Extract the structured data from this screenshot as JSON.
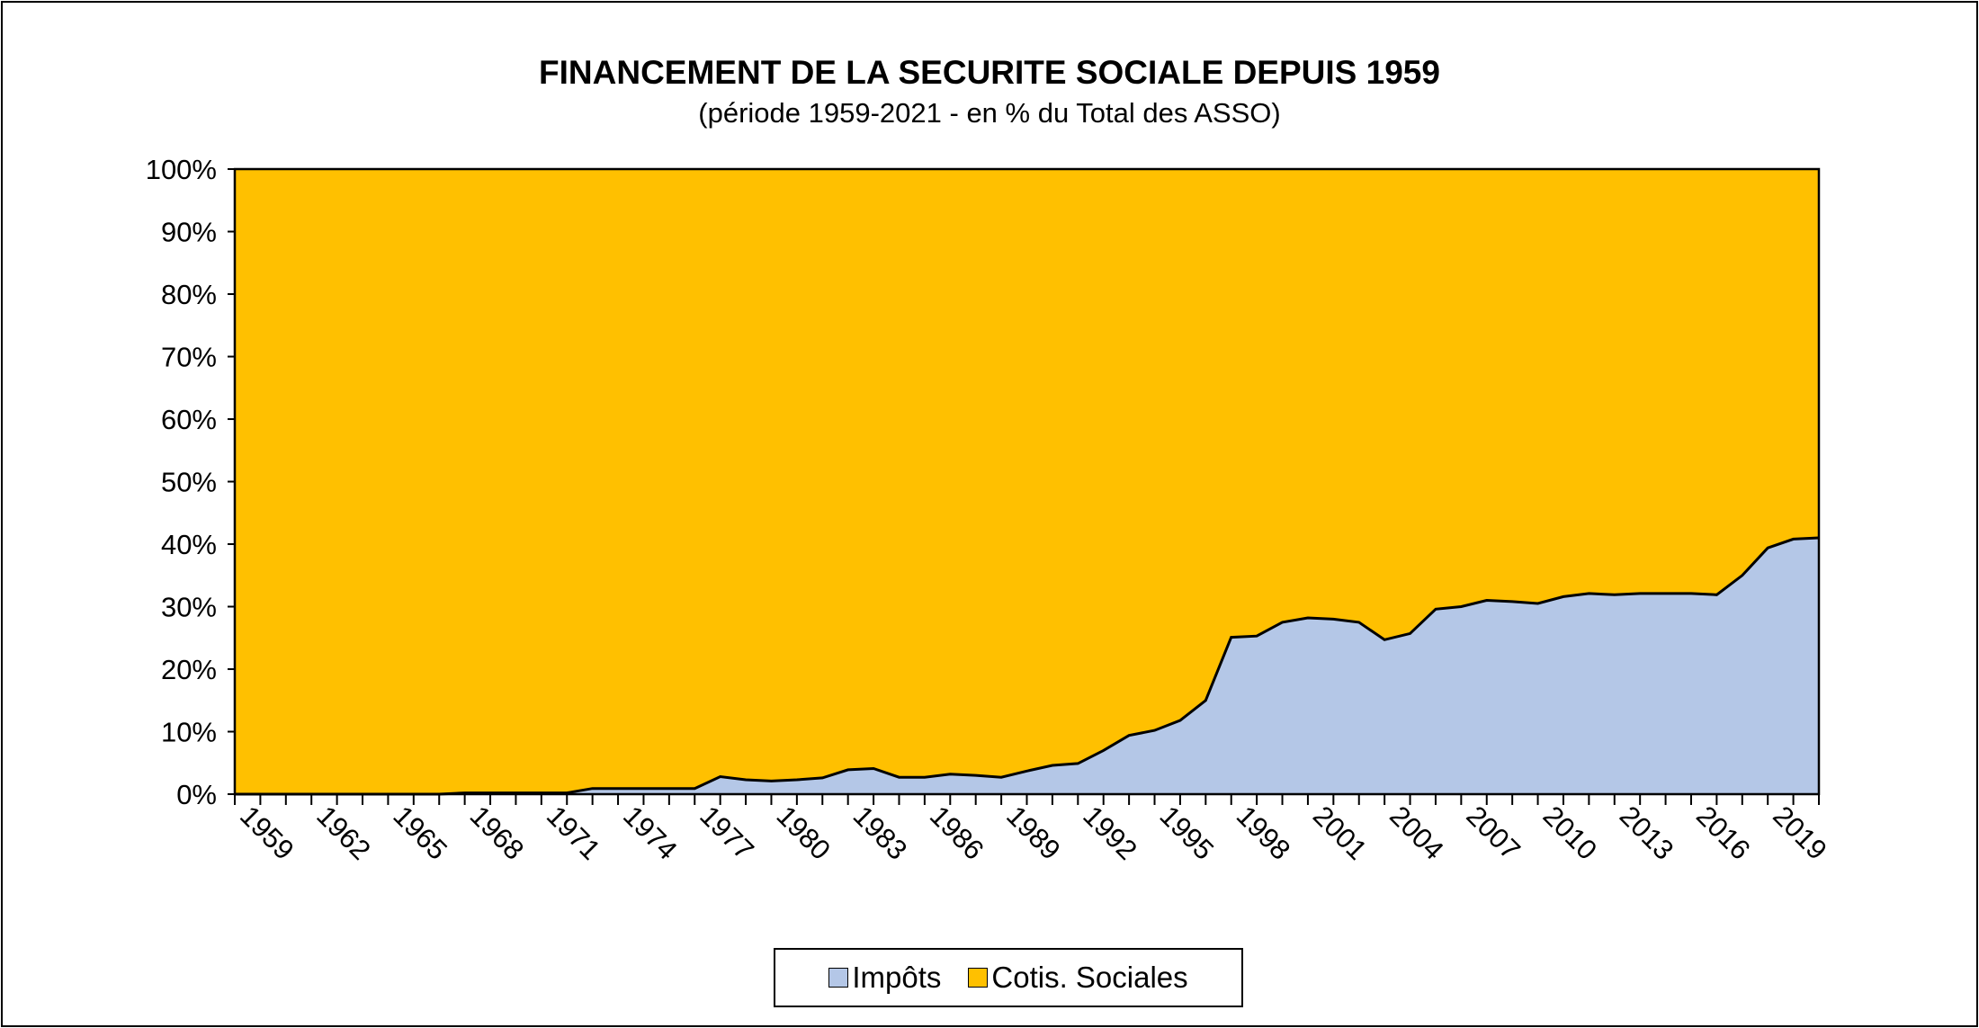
{
  "chart_data": {
    "type": "area",
    "stacked": "percent",
    "title": "FINANCEMENT DE LA SECURITE SOCIALE DEPUIS 1959",
    "subtitle": "(période 1959-2021 - en % du Total des ASSO)",
    "xlabel": "",
    "ylabel": "",
    "ylim": [
      0,
      100
    ],
    "yticks": [
      "0%",
      "10%",
      "20%",
      "30%",
      "40%",
      "50%",
      "60%",
      "70%",
      "80%",
      "90%",
      "100%"
    ],
    "x": [
      1959,
      1960,
      1961,
      1962,
      1963,
      1964,
      1965,
      1966,
      1967,
      1968,
      1969,
      1970,
      1971,
      1972,
      1973,
      1974,
      1975,
      1976,
      1977,
      1978,
      1979,
      1980,
      1981,
      1982,
      1983,
      1984,
      1985,
      1986,
      1987,
      1988,
      1989,
      1990,
      1991,
      1992,
      1993,
      1994,
      1995,
      1996,
      1997,
      1998,
      1999,
      2000,
      2001,
      2002,
      2003,
      2004,
      2005,
      2006,
      2007,
      2008,
      2009,
      2010,
      2011,
      2012,
      2013,
      2014,
      2015,
      2016,
      2017,
      2018,
      2019,
      2020,
      2021
    ],
    "xtick_labels": [
      "1959",
      "1962",
      "1965",
      "1968",
      "1971",
      "1974",
      "1977",
      "1980",
      "1983",
      "1986",
      "1989",
      "1992",
      "1995",
      "1998",
      "2001",
      "2004",
      "2007",
      "2010",
      "2013",
      "2016",
      "2019"
    ],
    "series": [
      {
        "name": "Impôts",
        "color": "#B4C7E7",
        "values": [
          0,
          0,
          0,
          0,
          0,
          0,
          0,
          0,
          0,
          0.2,
          0.2,
          0.2,
          0.2,
          0.2,
          0.9,
          0.9,
          0.9,
          0.9,
          0.9,
          2.8,
          2.3,
          2.1,
          2.3,
          2.6,
          3.9,
          4.1,
          2.7,
          2.7,
          3.2,
          3.0,
          2.7,
          3.7,
          4.6,
          4.9,
          7.0,
          9.4,
          10.2,
          11.8,
          15.0,
          25.1,
          25.3,
          27.5,
          28.2,
          28.0,
          27.5,
          24.7,
          25.7,
          29.6,
          30.0,
          31.0,
          30.8,
          30.5,
          31.6,
          32.1,
          31.9,
          32.1,
          32.1,
          32.1,
          31.9,
          35.0,
          39.4,
          40.8,
          41.0
        ]
      },
      {
        "name": "Cotis. Sociales",
        "color": "#FFC000",
        "values": "complement to 100%"
      }
    ],
    "legend": "bottom",
    "grid": false
  }
}
